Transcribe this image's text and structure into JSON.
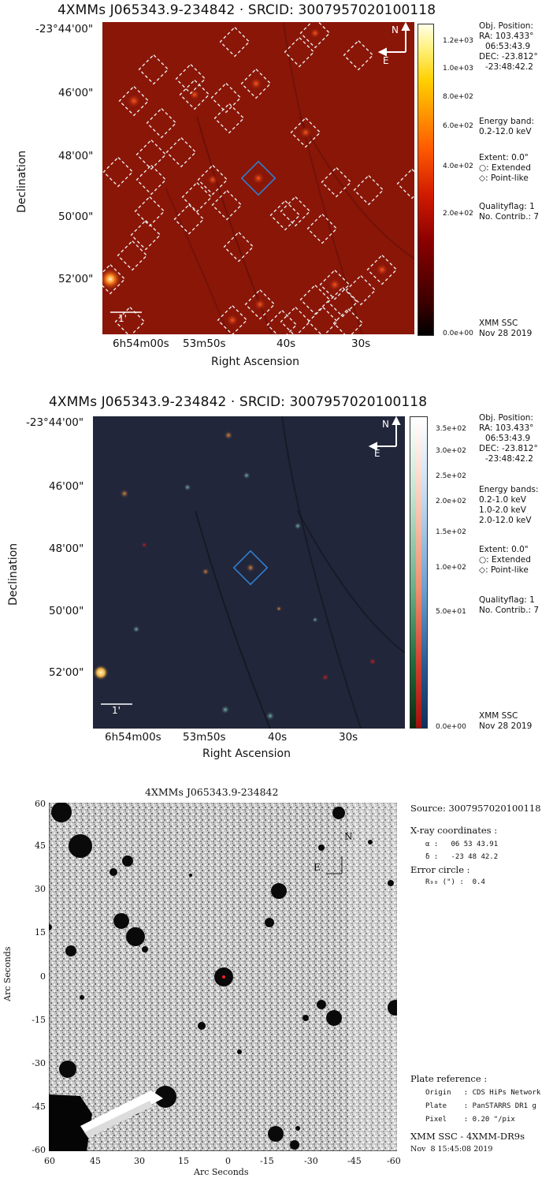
{
  "panel1": {
    "title": "4XMMs J065343.9-234842  ·  SRCID: 3007957020100118",
    "dec_ticks": [
      "-23°44'00\"",
      "46'00\"",
      "48'00\"",
      "50'00\"",
      "52'00\""
    ],
    "ra_ticks": [
      "6h54m00s",
      "53m50s",
      "40s",
      "30s"
    ],
    "ylabel": "Declination",
    "xlabel": "Right Ascension",
    "colorbar_ticks": [
      "1.2e+03",
      "1.0e+03",
      "8.0e+02",
      "6.0e+02",
      "4.0e+02",
      "2.0e+02",
      "0.0e+00"
    ],
    "scale_label": "1'",
    "compass": {
      "n": "N",
      "e": "E"
    },
    "info": {
      "obj_position": "Obj. Position:",
      "ra": "RA: 103.433°",
      "ra_sex": "06:53:43.9",
      "dec": "DEC: -23.812°",
      "dec_sex": "-23:48:42.2",
      "energy_title": "Energy band:",
      "energy_1": "0.2-12.0 keV",
      "extent": "Extent: 0.0\"",
      "extended": "○: Extended",
      "pointlike": "◇: Point-like",
      "qualityflag": "Qualityflag: 1",
      "contrib": "No. Contrib.: 7",
      "footer_1": "XMM SSC",
      "footer_2": "Nov 28 2019"
    }
  },
  "panel2": {
    "title": "4XMMs J065343.9-234842  ·  SRCID: 3007957020100118",
    "dec_ticks": [
      "-23°44'00\"",
      "46'00\"",
      "48'00\"",
      "50'00\"",
      "52'00\""
    ],
    "ra_ticks": [
      "6h54m00s",
      "53m50s",
      "40s",
      "30s"
    ],
    "ylabel": "Declination",
    "xlabel": "Right Ascension",
    "colorbar_ticks": [
      "3.5e+02",
      "3.0e+02",
      "2.5e+02",
      "2.0e+02",
      "1.5e+02",
      "1.0e+02",
      "5.0e+01",
      "0.0e+00"
    ],
    "scale_label": "1'",
    "compass": {
      "n": "N",
      "e": "E"
    },
    "info": {
      "obj_position": "Obj. Position:",
      "ra": "RA: 103.433°",
      "ra_sex": "06:53:43.9",
      "dec": "DEC: -23.812°",
      "dec_sex": "-23:48:42.2",
      "energy_title": "Energy bands:",
      "energy_1": "0.2-1.0 keV",
      "energy_2": "1.0-2.0 keV",
      "energy_3": "2.0-12.0 keV",
      "extent": "Extent: 0.0\"",
      "extended": "○: Extended",
      "pointlike": "◇: Point-like",
      "qualityflag": "Qualityflag: 1",
      "contrib": "No. Contrib.: 7",
      "footer_1": "XMM SSC",
      "footer_2": "Nov 28 2019"
    }
  },
  "panel3": {
    "title": "4XMMs J065343.9-234842",
    "yticks": [
      "60",
      "45",
      "30",
      "15",
      "0",
      "-15",
      "-30",
      "-45",
      "-60"
    ],
    "xticks": [
      "60",
      "45",
      "30",
      "15",
      "0",
      "-15",
      "-30",
      "-45",
      "-60"
    ],
    "ylabel": "Arc Seconds",
    "xlabel": "Arc Seconds",
    "compass": {
      "n": "N",
      "e": "E"
    },
    "info": {
      "source": "Source: 3007957020100118",
      "xray_title": "X-ray coordinates :",
      "alpha": "α :   06 53 43.91",
      "delta": "δ :   -23 48 42.2",
      "error_title": "Error circle :",
      "r90": "R₉₀ (\") :  0.4",
      "plate_title": "Plate reference :",
      "origin": "Origin   : CDS HiPs Network",
      "plate": "Plate    : PanSTARRS DR1 g",
      "pixel": "Pixel    : 0.20 \"/pix",
      "footer_1": "XMM SSC  -  4XMM-DR9s",
      "footer_2": "Nov  8 15:45:08 2019"
    }
  },
  "colors": {
    "heat_background": "#8a1608",
    "rgb_background": "#22263a",
    "selection_diamond": "#2f7fd0",
    "detection_box": "#e8e8e8"
  }
}
